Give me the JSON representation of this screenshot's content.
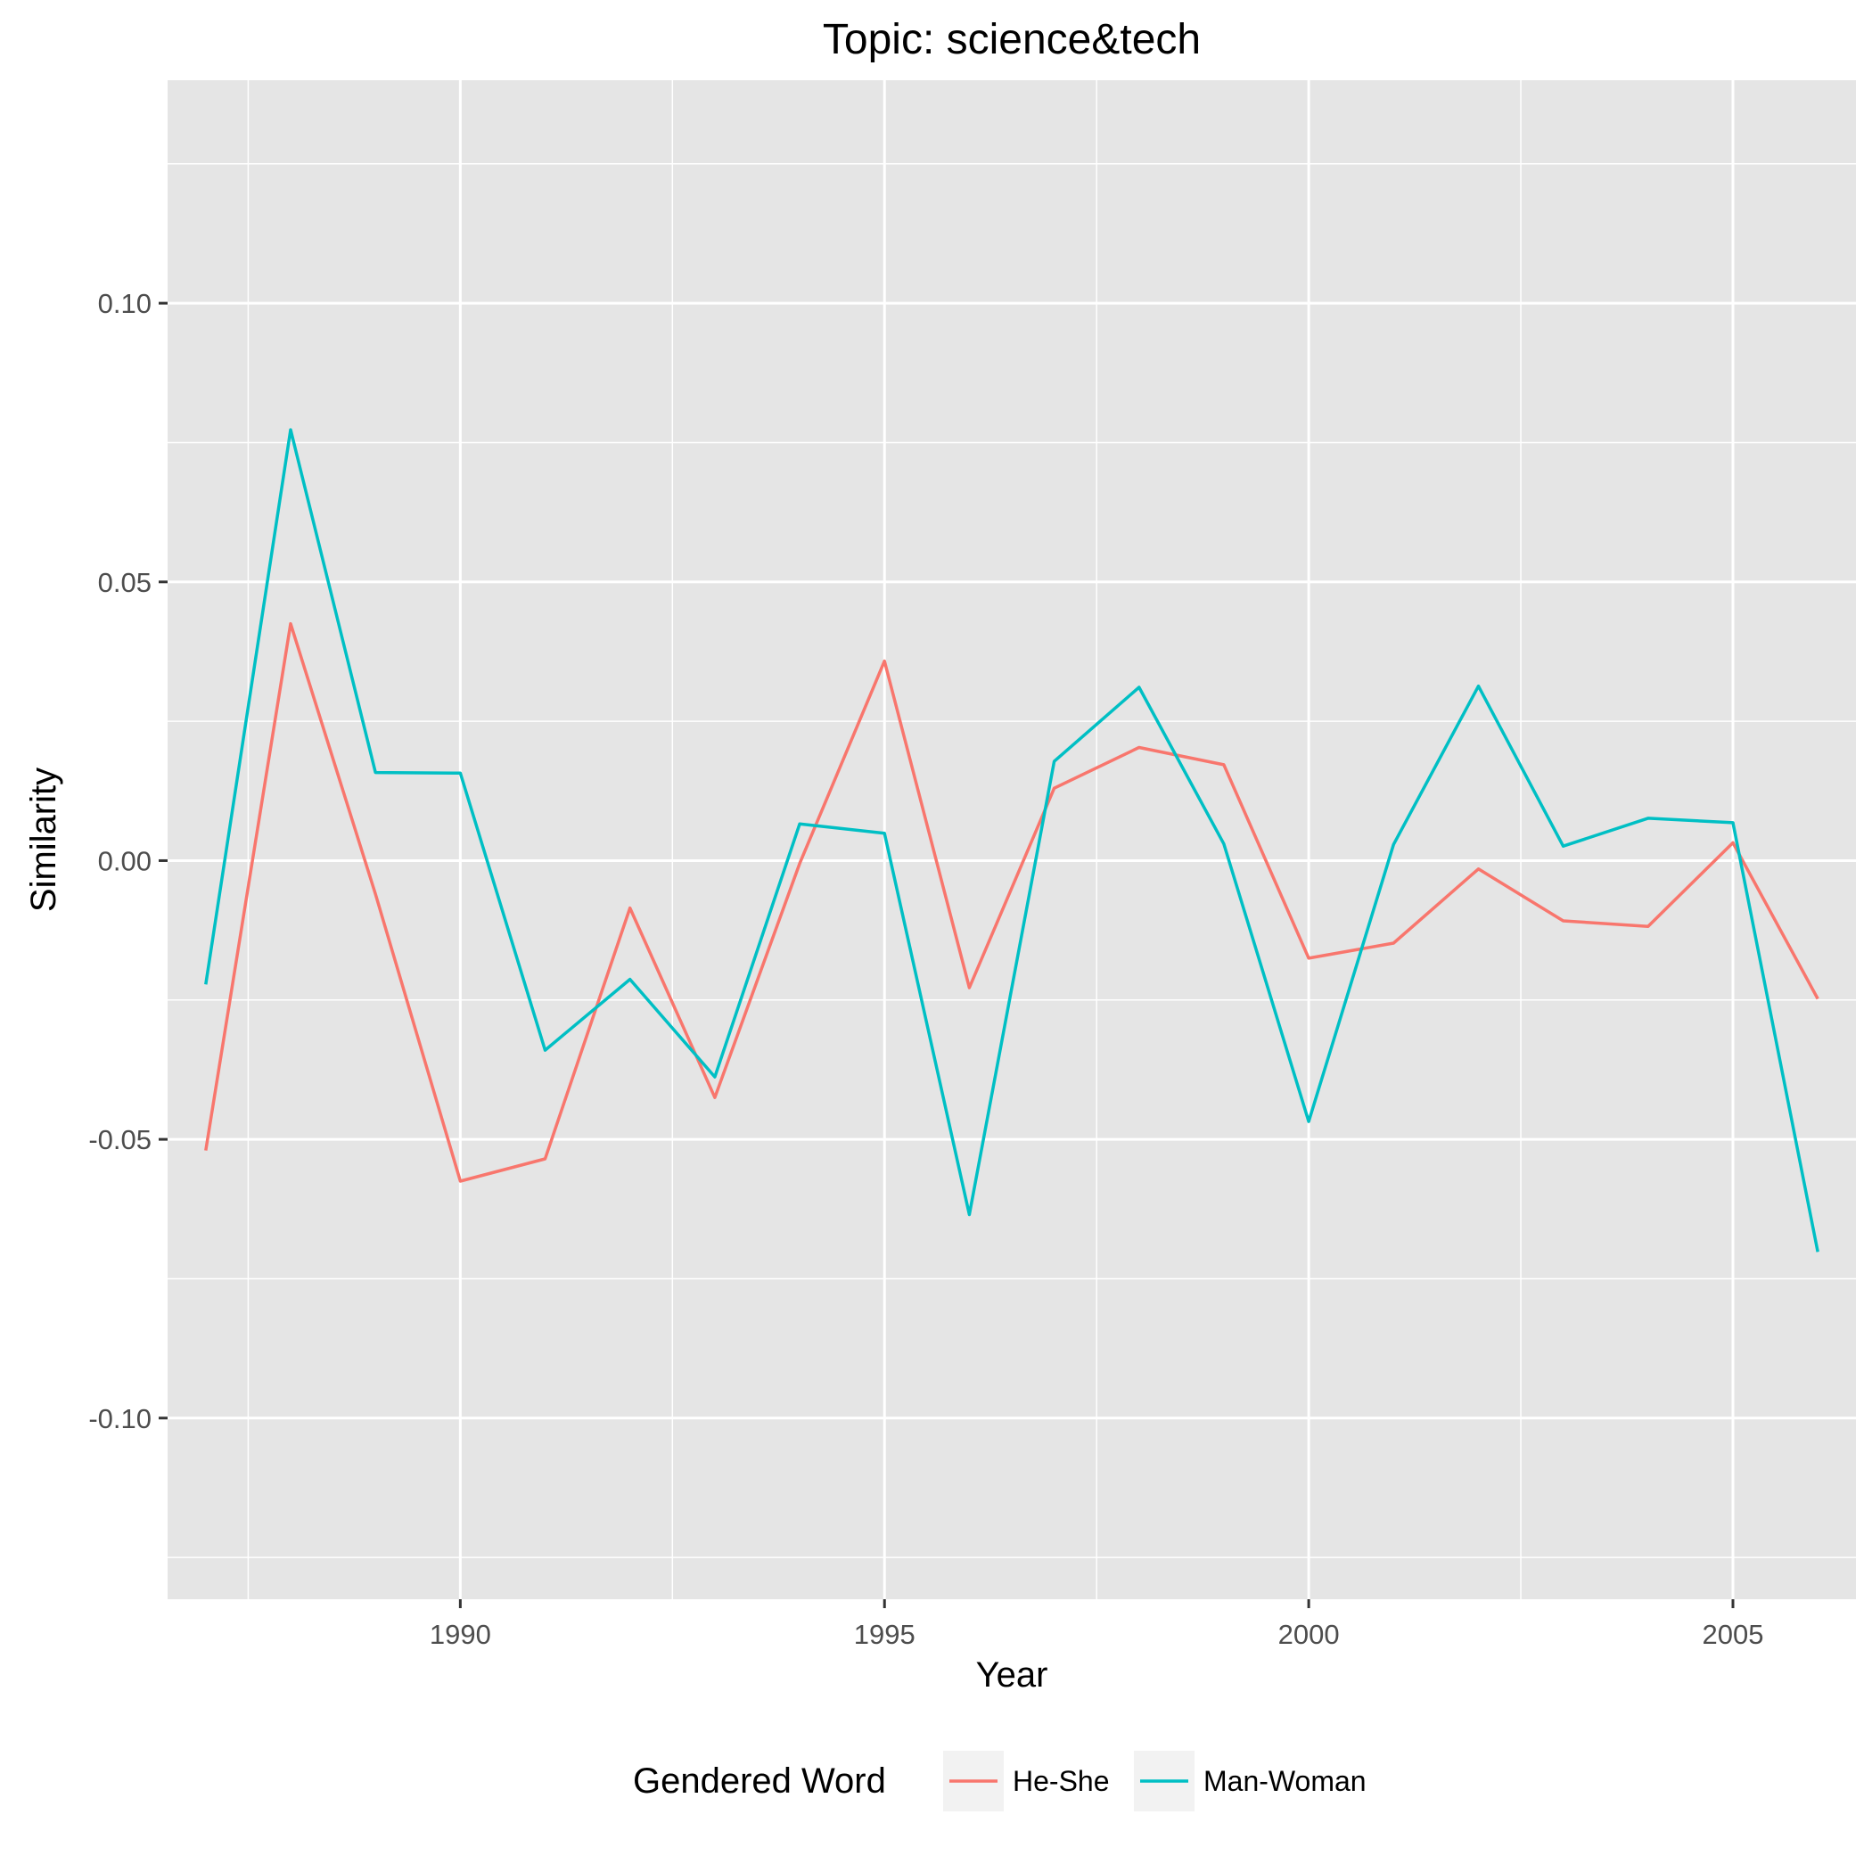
{
  "chart_data": {
    "type": "line",
    "title": "Topic: science&tech",
    "xlabel": "Year",
    "ylabel": "Similarity",
    "xlim": [
      1986.55,
      2006.45
    ],
    "ylim": [
      -0.1325,
      0.14
    ],
    "x_ticks": [
      1990,
      1995,
      2000,
      2005
    ],
    "x_tick_labels": [
      "1990",
      "1995",
      "2000",
      "2005"
    ],
    "y_ticks": [
      -0.1,
      -0.05,
      0.0,
      0.05,
      0.1
    ],
    "y_tick_labels": [
      "-0.10",
      "-0.05",
      "0.00",
      "0.05",
      "0.10"
    ],
    "grid": true,
    "legend": {
      "title": "Gendered Word",
      "position": "bottom"
    },
    "x": [
      1987,
      1988,
      1989,
      1990,
      1991,
      1992,
      1993,
      1994,
      1995,
      1996,
      1997,
      1998,
      1999,
      2000,
      2001,
      2002,
      2003,
      2004,
      2005,
      2006
    ],
    "series": [
      {
        "name": "He-She",
        "color": "#F8766D",
        "values": [
          -0.052,
          0.0425,
          -0.006,
          -0.0575,
          -0.0535,
          -0.0085,
          -0.0425,
          -0.0005,
          0.0358,
          -0.0228,
          0.013,
          0.0203,
          0.0172,
          -0.0175,
          -0.0148,
          -0.0015,
          -0.0108,
          -0.0118,
          0.0032,
          -0.0248
        ]
      },
      {
        "name": "Man-Woman",
        "color": "#00BFC4",
        "values": [
          -0.0222,
          0.0773,
          0.0158,
          0.0157,
          -0.034,
          -0.0213,
          -0.0388,
          0.0066,
          0.0049,
          -0.0635,
          0.0178,
          0.0311,
          0.003,
          -0.0468,
          0.0029,
          0.0313,
          0.0026,
          0.0076,
          0.0068,
          -0.0702
        ]
      }
    ]
  }
}
